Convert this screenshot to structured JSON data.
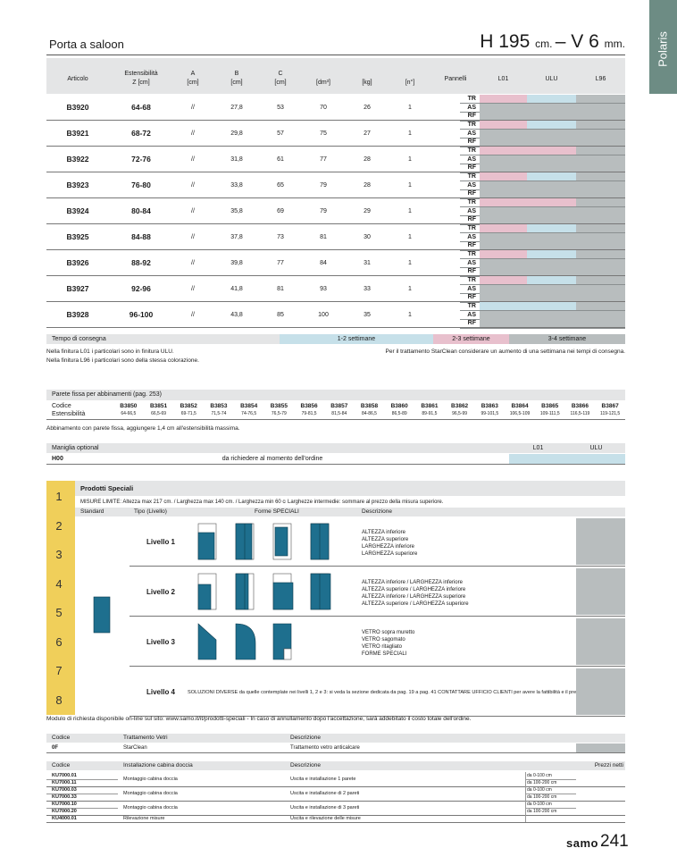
{
  "side_tab": "Polaris",
  "header": {
    "title": "Porta a saloon",
    "h_value": "H 195",
    "h_unit": "cm.",
    "v_value": "– V 6",
    "v_unit": "mm."
  },
  "main_table": {
    "columns": {
      "article": "Articolo",
      "extension": {
        "label": "Estensibilità",
        "unit": "Z [cm]"
      },
      "a": {
        "label": "A",
        "unit": "[cm]"
      },
      "b": {
        "label": "B",
        "unit": "[cm]"
      },
      "c": {
        "label": "C",
        "unit": "[cm]"
      },
      "volume": "[dm³]",
      "weight": "[kg]",
      "count": "[n°]",
      "panels": "Pannelli",
      "finishes": [
        "L01",
        "ULU",
        "L96"
      ]
    },
    "panel_types": [
      "TR",
      "AS",
      "RF"
    ],
    "rows": [
      {
        "code": "B3920",
        "ext": "64-68",
        "a": "//",
        "b": "27,8",
        "c": "53",
        "volume": "70",
        "weight": "26",
        "count": "1",
        "tr_colors": [
          "#e8c0cd",
          "#c6e0e9",
          "#b8bdbe"
        ]
      },
      {
        "code": "B3921",
        "ext": "68-72",
        "a": "//",
        "b": "29,8",
        "c": "57",
        "volume": "75",
        "weight": "27",
        "count": "1",
        "tr_colors": [
          "#e8c0cd",
          "#c6e0e9",
          "#b8bdbe"
        ]
      },
      {
        "code": "B3922",
        "ext": "72-76",
        "a": "//",
        "b": "31,8",
        "c": "61",
        "volume": "77",
        "weight": "28",
        "count": "1",
        "tr_colors": [
          "#e8c0cd",
          "#e8c0cd",
          "#b8bdbe"
        ]
      },
      {
        "code": "B3923",
        "ext": "76-80",
        "a": "//",
        "b": "33,8",
        "c": "65",
        "volume": "79",
        "weight": "28",
        "count": "1",
        "tr_colors": [
          "#e8c0cd",
          "#c6e0e9",
          "#b8bdbe"
        ]
      },
      {
        "code": "B3924",
        "ext": "80-84",
        "a": "//",
        "b": "35,8",
        "c": "69",
        "volume": "79",
        "weight": "29",
        "count": "1",
        "tr_colors": [
          "#e8c0cd",
          "#e8c0cd",
          "#b8bdbe"
        ]
      },
      {
        "code": "B3925",
        "ext": "84-88",
        "a": "//",
        "b": "37,8",
        "c": "73",
        "volume": "81",
        "weight": "30",
        "count": "1",
        "tr_colors": [
          "#e8c0cd",
          "#c6e0e9",
          "#b8bdbe"
        ]
      },
      {
        "code": "B3926",
        "ext": "88-92",
        "a": "//",
        "b": "39,8",
        "c": "77",
        "volume": "84",
        "weight": "31",
        "count": "1",
        "tr_colors": [
          "#e8c0cd",
          "#c6e0e9",
          "#b8bdbe"
        ]
      },
      {
        "code": "B3927",
        "ext": "92-96",
        "a": "//",
        "b": "41,8",
        "c": "81",
        "volume": "93",
        "weight": "33",
        "count": "1",
        "tr_colors": [
          "#e8c0cd",
          "#c6e0e9",
          "#b8bdbe"
        ]
      },
      {
        "code": "B3928",
        "ext": "96-100",
        "a": "//",
        "b": "43,8",
        "c": "85",
        "volume": "100",
        "weight": "35",
        "count": "1",
        "tr_colors": [
          "#c6e0e9",
          "#c6e0e9",
          "#b8bdbe"
        ]
      }
    ]
  },
  "delivery": {
    "label": "Tempo di consegna",
    "options": [
      {
        "text": "1-2 settimane",
        "color": "#c6e0e9"
      },
      {
        "text": "2-3 settimane",
        "color": "#e8c0cd"
      },
      {
        "text": "3-4 settimane",
        "color": "#b8bdbe"
      }
    ]
  },
  "notes": [
    "Nella finitura L01 i particolari sono in finitura ULU.",
    "Nella finitura L96 i particolari sono della stessa colorazione."
  ],
  "note_right": "Per il trattamento StarClean considerare un aumento di una settimana nei tempi di consegna.",
  "fixed_panel": {
    "title": "Parete fissa per abbinamenti (pag. 253)",
    "row_labels": [
      "Codice",
      "Estensibilità"
    ],
    "items": [
      {
        "code": "B3850",
        "ext": "64-66,5"
      },
      {
        "code": "B3851",
        "ext": "66,5-69"
      },
      {
        "code": "B3852",
        "ext": "69-71,5"
      },
      {
        "code": "B3853",
        "ext": "71,5-74"
      },
      {
        "code": "B3854",
        "ext": "74-76,5"
      },
      {
        "code": "B3855",
        "ext": "76,5-79"
      },
      {
        "code": "B3856",
        "ext": "79-81,5"
      },
      {
        "code": "B3857",
        "ext": "81,5-84"
      },
      {
        "code": "B3858",
        "ext": "84-86,5"
      },
      {
        "code": "B3860",
        "ext": "86,5-89"
      },
      {
        "code": "B3861",
        "ext": "89-91,5"
      },
      {
        "code": "B3862",
        "ext": "96,5-99"
      },
      {
        "code": "B3863",
        "ext": "99-101,5"
      },
      {
        "code": "B3864",
        "ext": "106,5-109"
      },
      {
        "code": "B3865",
        "ext": "109-111,5"
      },
      {
        "code": "B3866",
        "ext": "116,5-119"
      },
      {
        "code": "B3867",
        "ext": "119-121,5"
      }
    ],
    "note": "Abbinamento con parete fissa, aggiungere 1,4 cm all'estensibilità massima."
  },
  "handle": {
    "title": "Maniglia optional",
    "finishes": [
      "L01",
      "ULU"
    ],
    "code": "H00",
    "text": "da richiedere al momento dell'ordine"
  },
  "special": {
    "ruler": [
      "1",
      "2",
      "3",
      "4",
      "5",
      "6",
      "7",
      "8"
    ],
    "title": "Prodotti Speciali",
    "limits": "MISURE LIMITE: Altezza max 217 cm. / Larghezza max 140 cm. / Larghezza min 60 cm.",
    "intermediate": "Larghezze intermedie: sommare al prezzo della misura superiore.",
    "columns": [
      "Standard",
      "Tipo (Livello)",
      "Forme SPECIALI",
      "Descrizione"
    ],
    "levels": [
      {
        "name": "Livello 1",
        "desc": [
          "ALTEZZA inferiore",
          "ALTEZZA superiore",
          "LARGHEZZA inferiore",
          "LARGHEZZA superiore"
        ]
      },
      {
        "name": "Livello 2",
        "desc": [
          "ALTEZZA inferiore / LARGHEZZA inferiore",
          "ALTEZZA superiore / LARGHEZZA inferiore",
          "ALTEZZA inferiore / LARGHEZZA superiore",
          "ALTEZZA superiore / LARGHEZZA superiore"
        ]
      },
      {
        "name": "Livello 3",
        "desc": [
          "VETRO sopra muretto",
          "VETRO sagomato",
          "VETRO ritagliato",
          "FORME SPECIALI"
        ]
      },
      {
        "name": "Livello 4",
        "desc": [
          "SOLUZIONI DIVERSE da quelle contemplate nei livelli 1, 2 e 3: si veda la sezione dedicata da pag. 19 a pag. 41 CONTATTARE UFFICIO CLIENTI per avere la fattibilità e il prezzo"
        ]
      }
    ],
    "footnote": "Modulo di richiesta disponibile on-line sul sito: www.samo.it/it/prodotti-speciali - In caso di annullamento dopo l'accettazione, sarà addebitato il costo totale dell'ordine."
  },
  "glass": {
    "columns": [
      "Codice",
      "Trattamento Vetri",
      "Descrizione"
    ],
    "row": [
      "0F",
      "StarClean",
      "Trattamento vetro anticalcare"
    ]
  },
  "install": {
    "columns": [
      "Codice",
      "Installazione cabina doccia",
      "Descrizione",
      "Prezzi netti"
    ],
    "groups": [
      {
        "codes": [
          "KU7000.01",
          "KU7000.11"
        ],
        "type": "Montaggio cabina doccia",
        "desc": "Uscita e installazione 1 parete",
        "ranges": [
          "da 0-100 cm",
          "da 100-200 cm"
        ]
      },
      {
        "codes": [
          "KU7000.03",
          "KU7000.33"
        ],
        "type": "Montaggio cabina doccia",
        "desc": "Uscita e installazione di 2 pareti",
        "ranges": [
          "da 0-100 cm",
          "da 100-200 cm"
        ]
      },
      {
        "codes": [
          "KU7000.10",
          "KU7000.20"
        ],
        "type": "Montaggio cabina doccia",
        "desc": "Uscita e installazione di 3 pareti",
        "ranges": [
          "da 0-100 cm",
          "da 100-200 cm"
        ]
      },
      {
        "codes": [
          "KU4000.01"
        ],
        "type": "Rilevazione misure",
        "desc": "Uscita e rilevazione delle misure"
      }
    ]
  },
  "footer": {
    "brand": "samo",
    "page": "241"
  }
}
